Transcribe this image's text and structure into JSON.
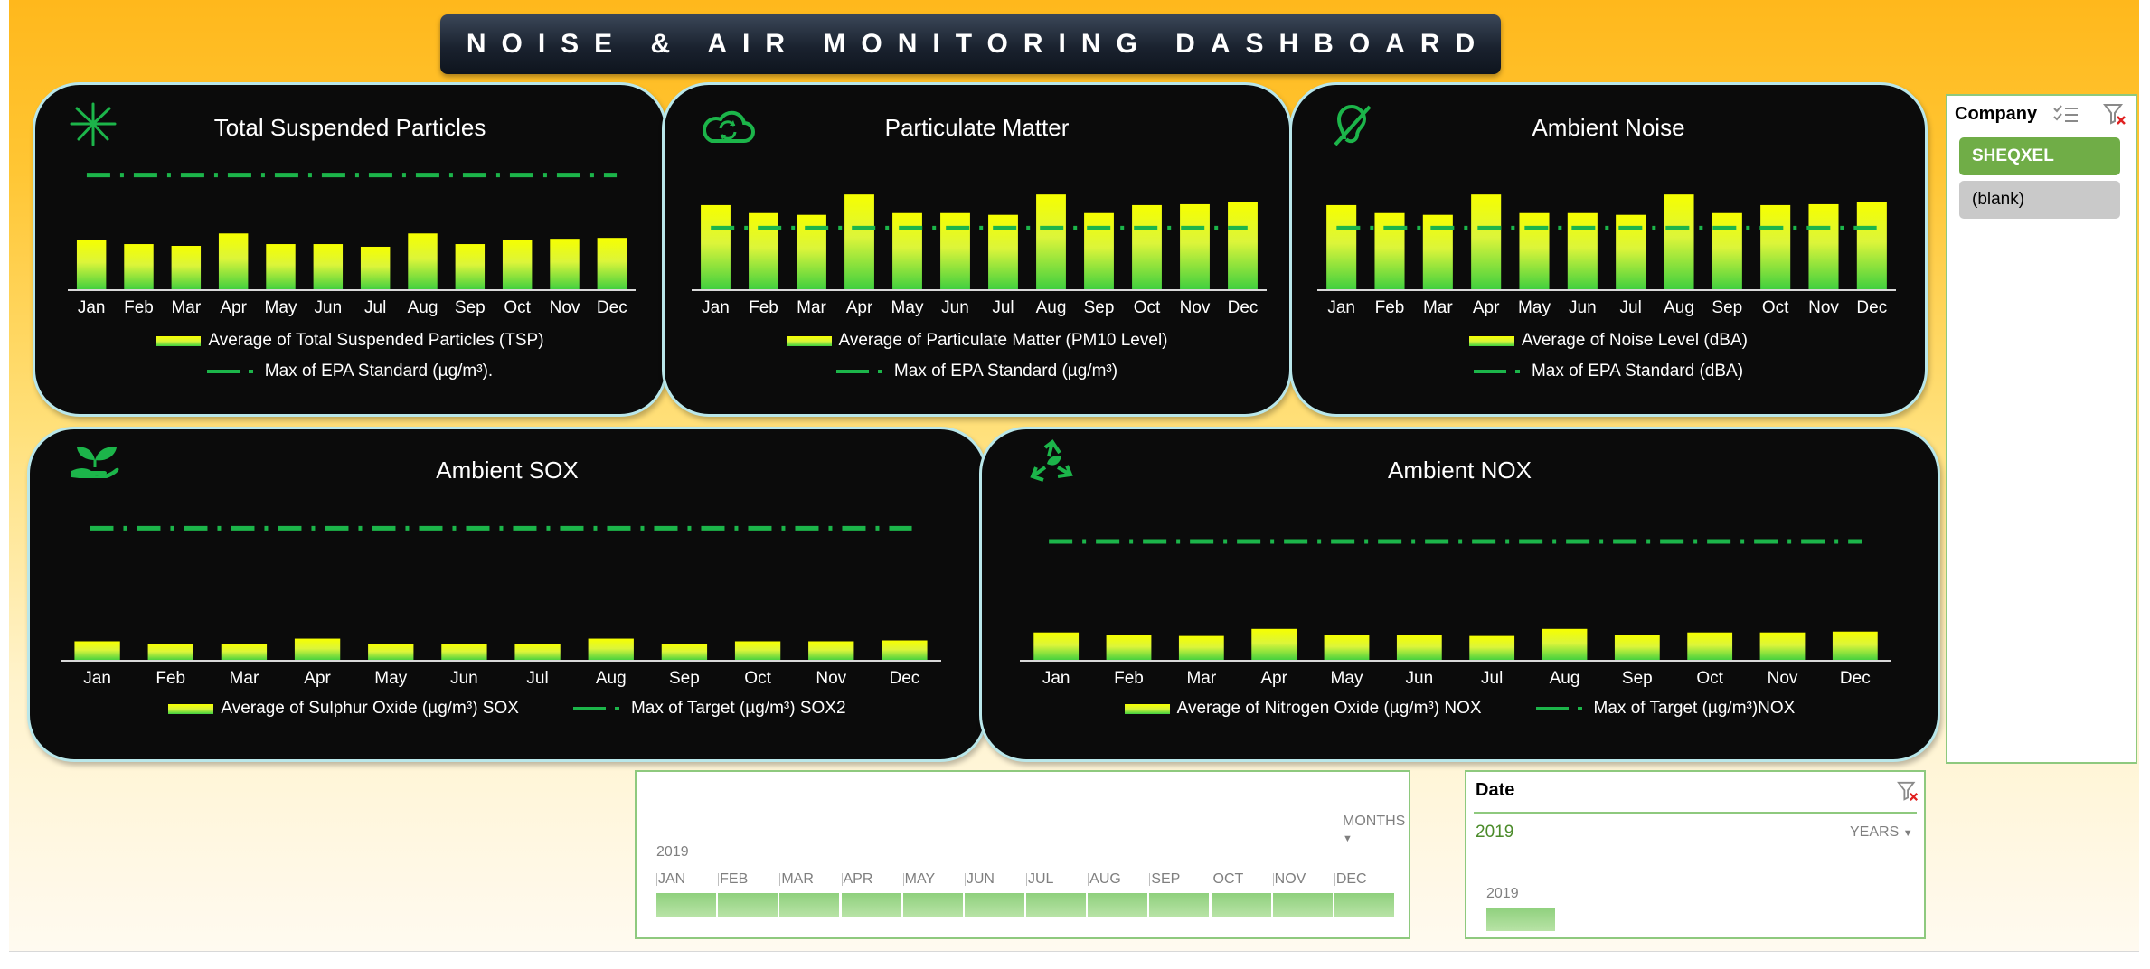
{
  "title": "NOISE & AIR MONITORING DASHBOARD",
  "months": [
    "Jan",
    "Feb",
    "Mar",
    "Apr",
    "May",
    "Jun",
    "Jul",
    "Aug",
    "Sep",
    "Oct",
    "Nov",
    "Dec"
  ],
  "colors": {
    "bar_top": "#f6ff00",
    "bar_bottom": "#3ecf3f",
    "target_line": "#1cb54a",
    "card_bg": "#0b0b0b",
    "slicer_selected": "#70ad47"
  },
  "chart_data": [
    {
      "id": "tsp",
      "type": "bar",
      "title": "Total Suspended Particles",
      "icon": "fireworks-icon",
      "categories": [
        "Jan",
        "Feb",
        "Mar",
        "Apr",
        "May",
        "Jun",
        "Jul",
        "Aug",
        "Sep",
        "Oct",
        "Nov",
        "Dec"
      ],
      "series": [
        {
          "name": "Average of Total Suspended Particles (TSP)",
          "values": [
            57,
            52,
            50,
            64,
            52,
            52,
            49,
            64,
            52,
            57,
            58,
            59
          ]
        },
        {
          "name": "Max of EPA Standard (µg/m³).",
          "style": "dash-dot",
          "values": [
            130,
            130,
            130,
            130,
            130,
            130,
            130,
            130,
            130,
            130,
            130,
            130
          ]
        }
      ],
      "ylim": [
        0,
        150
      ]
    },
    {
      "id": "pm",
      "type": "bar",
      "title": "Particulate Matter",
      "icon": "cloud-refresh-icon",
      "categories": [
        "Jan",
        "Feb",
        "Mar",
        "Apr",
        "May",
        "Jun",
        "Jul",
        "Aug",
        "Sep",
        "Oct",
        "Nov",
        "Dec"
      ],
      "series": [
        {
          "name": "Average of Particulate Matter (PM10 Level)",
          "values": [
            96,
            87,
            85,
            108,
            87,
            87,
            85,
            108,
            87,
            96,
            97,
            99
          ]
        },
        {
          "name": "Max of EPA Standard (µg/m³)",
          "style": "dash-dot",
          "values": [
            70,
            70,
            70,
            70,
            70,
            70,
            70,
            70,
            70,
            70,
            70,
            70
          ]
        }
      ],
      "ylim": [
        0,
        150
      ]
    },
    {
      "id": "noise",
      "type": "bar",
      "title": "Ambient Noise",
      "icon": "ear-off-icon",
      "categories": [
        "Jan",
        "Feb",
        "Mar",
        "Apr",
        "May",
        "Jun",
        "Jul",
        "Aug",
        "Sep",
        "Oct",
        "Nov",
        "Dec"
      ],
      "series": [
        {
          "name": "Average of Noise Level (dBA)",
          "values": [
            96,
            87,
            85,
            108,
            87,
            87,
            85,
            108,
            87,
            96,
            97,
            99
          ]
        },
        {
          "name": "Max of EPA Standard  (dBA)",
          "style": "dash-dot",
          "values": [
            70,
            70,
            70,
            70,
            70,
            70,
            70,
            70,
            70,
            70,
            70,
            70
          ]
        }
      ],
      "ylim": [
        0,
        150
      ]
    },
    {
      "id": "sox",
      "type": "bar",
      "title": "Ambient SOX",
      "icon": "plant-hand-icon",
      "categories": [
        "Jan",
        "Feb",
        "Mar",
        "Apr",
        "May",
        "Jun",
        "Jul",
        "Aug",
        "Sep",
        "Oct",
        "Nov",
        "Dec"
      ],
      "series": [
        {
          "name": "Average of Sulphur Oxide (µg/m³) SOX",
          "values": [
            22,
            19,
            19,
            25,
            19,
            19,
            19,
            25,
            19,
            22,
            22,
            23
          ]
        },
        {
          "name": "Max of Target (µg/m³) SOX2",
          "style": "dash-dot",
          "values": [
            150,
            150,
            150,
            150,
            150,
            150,
            150,
            150,
            150,
            150,
            150,
            150
          ]
        }
      ],
      "ylim": [
        0,
        180
      ]
    },
    {
      "id": "nox",
      "type": "bar",
      "title": "Ambient NOX",
      "icon": "recycle-leaf-icon",
      "categories": [
        "Jan",
        "Feb",
        "Mar",
        "Apr",
        "May",
        "Jun",
        "Jul",
        "Aug",
        "Sep",
        "Oct",
        "Nov",
        "Dec"
      ],
      "series": [
        {
          "name": "Average of Nitrogen Oxide  (µg/m³) NOX",
          "values": [
            32,
            29,
            28,
            36,
            29,
            29,
            28,
            36,
            29,
            32,
            32,
            33
          ]
        },
        {
          "name": "Max of Target (µg/m³)NOX",
          "style": "dash-dot",
          "values": [
            135,
            135,
            135,
            135,
            135,
            135,
            135,
            135,
            135,
            135,
            135,
            135
          ]
        }
      ],
      "ylim": [
        0,
        180
      ]
    }
  ],
  "company_slicer": {
    "title": "Company",
    "items": [
      {
        "label": "SHEQXEL",
        "selected": true
      },
      {
        "label": "(blank)",
        "selected": false
      }
    ]
  },
  "months_timeline": {
    "level": "MONTHS",
    "year": "2019",
    "labels": [
      "JAN",
      "FEB",
      "MAR",
      "APR",
      "MAY",
      "JUN",
      "JUL",
      "AUG",
      "SEP",
      "OCT",
      "NOV",
      "DEC"
    ]
  },
  "date_timeline": {
    "title": "Date",
    "selected_range": "2019",
    "level": "YEARS",
    "year_label": "2019"
  }
}
